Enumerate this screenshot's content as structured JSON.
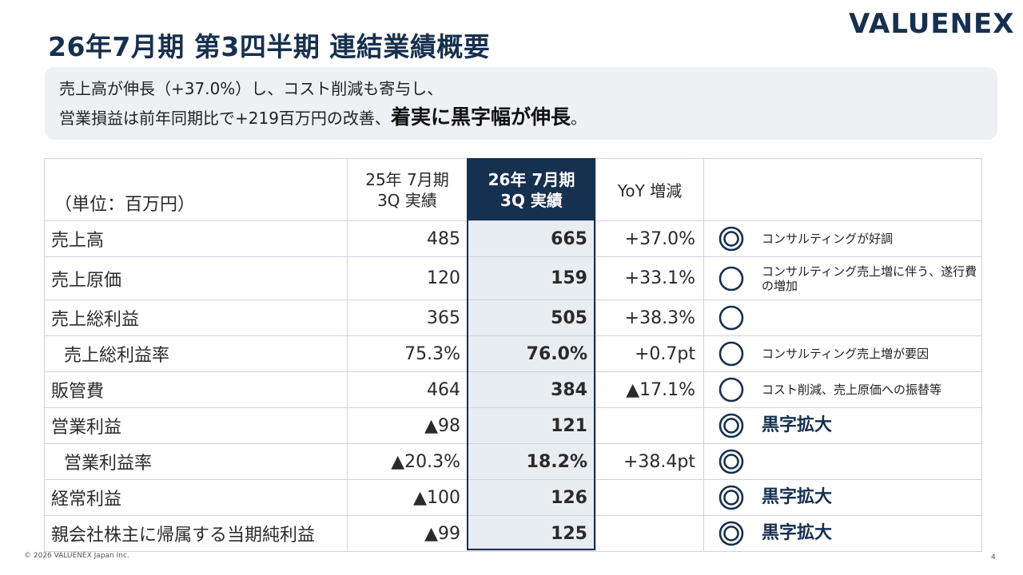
{
  "header": {
    "title": "26年7月期 第3四半期 連結業績概要",
    "logo": "VALUENEX"
  },
  "summary": {
    "line1": "売上高が伸長（+37.0%）し、コスト削減も寄与し、",
    "line2_prefix": "営業損益は前年同期比で+219百万円の改善、",
    "line2_highlight": "着実に黒字幅が伸長",
    "line2_suffix": "。"
  },
  "table": {
    "unit": "（単位：百万円）",
    "col_prev_line1": "25年 7月期",
    "col_prev_line2": "3Q 実績",
    "col_cur_line1": "26年 7月期",
    "col_cur_line2": "3Q 実績",
    "col_yoy": "YoY 増減",
    "rows": [
      {
        "label": "売上高",
        "prev": "485",
        "cur": "665",
        "yoy": "+37.0%",
        "mark": "double",
        "note": "コンサルティングが好調"
      },
      {
        "label": "売上原価",
        "prev": "120",
        "cur": "159",
        "yoy": "+33.1%",
        "mark": "single",
        "note": "コンサルティング売上増に伴う、遂行費の増加"
      },
      {
        "label": "売上総利益",
        "prev": "365",
        "cur": "505",
        "yoy": "+38.3%",
        "mark": "single",
        "note": ""
      },
      {
        "label": "売上総利益率",
        "prev": "75.3%",
        "cur": "76.0%",
        "yoy": "+0.7pt",
        "mark": "single",
        "note": "コンサルティング売上増が要因"
      },
      {
        "label": "販管費",
        "prev": "464",
        "cur": "384",
        "yoy": "▲17.1%",
        "mark": "single",
        "note": "コスト削減、売上原価への振替等"
      },
      {
        "label": "営業利益",
        "prev": "▲98",
        "cur": "121",
        "yoy": "",
        "mark": "double",
        "note": "黒字拡大"
      },
      {
        "label": "営業利益率",
        "prev": "▲20.3%",
        "cur": "18.2%",
        "yoy": "+38.4pt",
        "mark": "double",
        "note": ""
      },
      {
        "label": "経常利益",
        "prev": "▲100",
        "cur": "126",
        "yoy": "",
        "mark": "double",
        "note": "黒字拡大"
      },
      {
        "label": "親会社株主に帰属する当期純利益",
        "prev": "▲99",
        "cur": "125",
        "yoy": "",
        "mark": "double",
        "note": "黒字拡大"
      }
    ]
  },
  "footer": {
    "copyright": "© 2026 VALUENEX Japan Inc.",
    "page": "4"
  },
  "colors": {
    "navy": "#16304f",
    "current_column_bg": "#e8edf2",
    "summary_bg": "#eef0f3"
  }
}
